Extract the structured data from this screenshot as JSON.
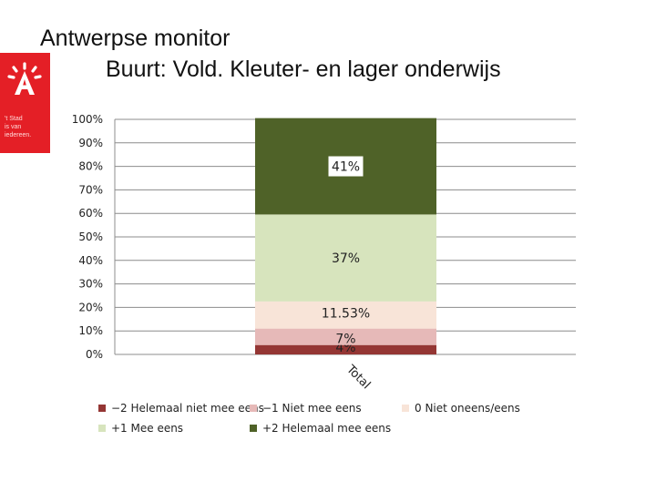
{
  "header": {
    "title_line1": "Antwerpse monitor",
    "title_line2": "Buurt: Vold. Kleuter- en lager onderwijs"
  },
  "logo": {
    "icon": "antwerp-a-logo-icon",
    "lines": [
      "'t Stad",
      "is van",
      "iedereen."
    ],
    "color": "#e41f26"
  },
  "chart_data": {
    "type": "bar",
    "stacked": true,
    "percent_stacked": true,
    "categories": [
      "Total"
    ],
    "ylim": [
      0,
      100
    ],
    "yticks": [
      "0%",
      "10%",
      "20%",
      "30%",
      "40%",
      "50%",
      "60%",
      "70%",
      "80%",
      "90%",
      "100%"
    ],
    "grid": true,
    "legend_position": "bottom",
    "series": [
      {
        "name": "−2 Helemaal niet mee eens",
        "values": [
          4
        ],
        "label": "4%",
        "color": "#943634"
      },
      {
        "name": "−1 Niet mee eens",
        "values": [
          7
        ],
        "label": "7%",
        "color": "#e6b9b8"
      },
      {
        "name": "0 Niet oneens/eens",
        "values": [
          11.53
        ],
        "label": "11.53%",
        "color": "#f8e4d8"
      },
      {
        "name": "+1 Mee eens",
        "values": [
          37
        ],
        "label": "37%",
        "color": "#d7e4bd"
      },
      {
        "name": "+2 Helemaal mee eens",
        "values": [
          41
        ],
        "label": "41%",
        "color": "#4f6228"
      }
    ]
  }
}
